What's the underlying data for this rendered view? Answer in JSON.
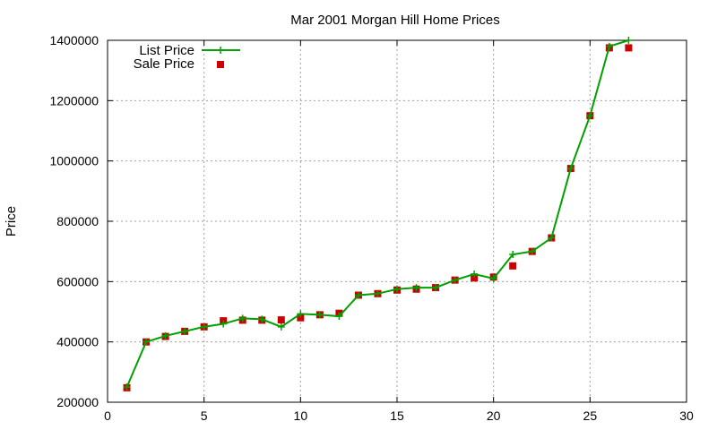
{
  "chart_data": {
    "type": "line",
    "title": "Mar 2001 Morgan Hill Home Prices",
    "xlabel": "",
    "ylabel": "Price",
    "xlim": [
      0,
      30
    ],
    "ylim": [
      200000,
      1400000
    ],
    "xticks": [
      0,
      5,
      10,
      15,
      20,
      25,
      30
    ],
    "yticks": [
      200000,
      400000,
      600000,
      800000,
      1000000,
      1200000,
      1400000
    ],
    "grid": true,
    "legend_position": "top-left",
    "series": [
      {
        "name": "List Price",
        "style": "line-with-plus-markers",
        "color": "#00a000",
        "x": [
          1,
          2,
          3,
          4,
          5,
          6,
          7,
          8,
          9,
          10,
          11,
          12,
          13,
          14,
          15,
          16,
          17,
          18,
          19,
          20,
          21,
          22,
          23,
          24,
          25,
          26,
          27
        ],
        "values": [
          250000,
          400000,
          420000,
          435000,
          450000,
          460000,
          478000,
          475000,
          450000,
          493000,
          490000,
          485000,
          555000,
          560000,
          575000,
          580000,
          580000,
          605000,
          625000,
          610000,
          690000,
          700000,
          745000,
          975000,
          1150000,
          1380000,
          1400000
        ]
      },
      {
        "name": "Sale Price",
        "style": "square-markers",
        "color": "#cc0000",
        "x": [
          1,
          2,
          3,
          4,
          5,
          6,
          7,
          8,
          9,
          10,
          11,
          12,
          13,
          14,
          15,
          16,
          17,
          18,
          19,
          20,
          21,
          22,
          23,
          24,
          25,
          26,
          27
        ],
        "values": [
          248000,
          400000,
          418000,
          435000,
          450000,
          470000,
          472000,
          472000,
          473000,
          480000,
          490000,
          495000,
          555000,
          560000,
          572000,
          575000,
          580000,
          605000,
          612000,
          615000,
          652000,
          700000,
          745000,
          975000,
          1150000,
          1375000,
          1375000
        ]
      }
    ]
  }
}
